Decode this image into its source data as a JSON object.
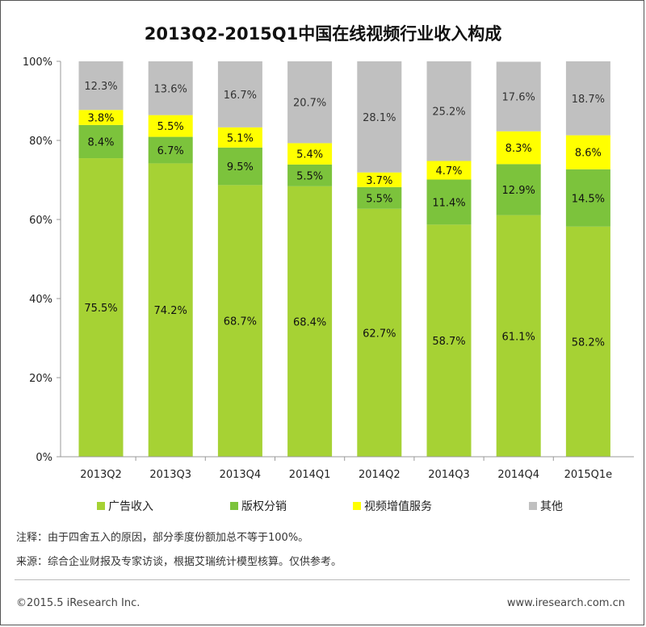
{
  "colors": {
    "ad": "#a6d234",
    "copyright": "#7cc33c",
    "vas": "#ffff00",
    "other": "#c0c0c0",
    "axis": "#999999"
  },
  "chart_data": {
    "type": "bar",
    "stacked": true,
    "title": "2013Q2-2015Q1中国在线视频行业收入构成",
    "categories": [
      "2013Q2",
      "2013Q3",
      "2013Q4",
      "2014Q1",
      "2014Q2",
      "2014Q3",
      "2014Q4",
      "2015Q1e"
    ],
    "series": [
      {
        "name": "广告收入",
        "values": [
          75.5,
          74.2,
          68.7,
          68.4,
          62.7,
          58.7,
          61.1,
          58.2
        ],
        "labels": [
          "75.5%",
          "74.2%",
          "68.7%",
          "68.4%",
          "62.7%",
          "58.7%",
          "61.1%",
          "58.2%"
        ]
      },
      {
        "name": "版权分销",
        "values": [
          8.4,
          6.7,
          9.5,
          5.5,
          5.5,
          11.4,
          12.9,
          14.5
        ],
        "labels": [
          "8.4%",
          "6.7%",
          "9.5%",
          "5.5%",
          "5.5%",
          "11.4%",
          "12.9%",
          "14.5%"
        ]
      },
      {
        "name": "视频增值服务",
        "values": [
          3.8,
          5.5,
          5.1,
          5.4,
          3.7,
          4.7,
          8.3,
          8.6
        ],
        "labels": [
          "3.8%",
          "5.5%",
          "5.1%",
          "5.4%",
          "3.7%",
          "4.7%",
          "8.3%",
          "8.6%"
        ]
      },
      {
        "name": "其他",
        "values": [
          12.3,
          13.6,
          16.7,
          20.7,
          28.1,
          25.2,
          17.6,
          18.7
        ],
        "labels": [
          "12.3%",
          "13.6%",
          "16.7%",
          "20.7%",
          "28.1%",
          "25.2%",
          "17.6%",
          "18.7%"
        ]
      }
    ],
    "ylim": [
      0,
      100
    ],
    "yticks": [
      "0%",
      "20%",
      "40%",
      "60%",
      "80%",
      "100%"
    ],
    "grid": false,
    "legend_position": "bottom"
  },
  "notes": {
    "note1": "注释：由于四舍五入的原因，部分季度份额加总不等于100%。",
    "note2": "来源：综合企业财报及专家访谈，根据艾瑞统计模型核算。仅供参考。"
  },
  "footer": {
    "left": "©2015.5 iResearch Inc.",
    "right": "www.iresearch.com.cn"
  }
}
